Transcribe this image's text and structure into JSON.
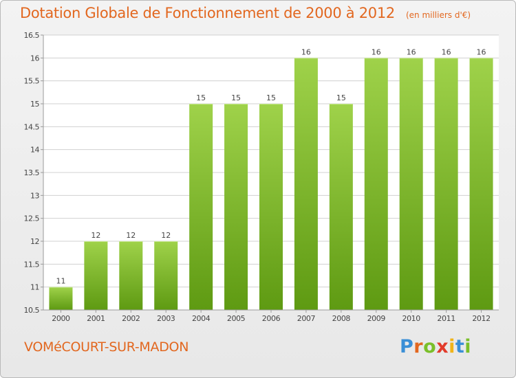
{
  "title": "Dotation Globale de Fonctionnement de 2000 à 2012",
  "unit_note": "(en milliers d'€)",
  "commune": "VOMéCOURT-SUR-MADON",
  "logo": {
    "text": "Proxiti",
    "letter_colors": [
      "#3a8fd6",
      "#e2671f",
      "#7bbf2a",
      "#e23b2b",
      "#f0b419",
      "#3a8fd6",
      "#7bbf2a"
    ]
  },
  "colors": {
    "title": "#e2671f",
    "bar_light": "#9fd24a",
    "bar_dark": "#5e9a12",
    "grid": "#d0d0d0"
  },
  "chart_data": {
    "type": "bar",
    "categories": [
      "2000",
      "2001",
      "2002",
      "2003",
      "2004",
      "2005",
      "2006",
      "2007",
      "2008",
      "2009",
      "2010",
      "2011",
      "2012"
    ],
    "values": [
      11,
      12,
      12,
      12,
      15,
      15,
      15,
      16,
      15,
      16,
      16,
      16,
      16
    ],
    "data_labels": [
      "11",
      "12",
      "12",
      "12",
      "15",
      "15",
      "15",
      "16",
      "15",
      "16",
      "16",
      "16",
      "16"
    ],
    "ylim": [
      10.5,
      16.5
    ],
    "yticks": [
      10.5,
      11,
      11.5,
      12,
      12.5,
      13,
      13.5,
      14,
      14.5,
      15,
      15.5,
      16,
      16.5
    ],
    "ytick_labels": [
      "10.5",
      "11",
      "11.5",
      "12",
      "12.5",
      "13",
      "13.5",
      "14",
      "14.5",
      "15",
      "15.5",
      "16",
      "16.5"
    ],
    "grid": true,
    "legend": "none"
  }
}
